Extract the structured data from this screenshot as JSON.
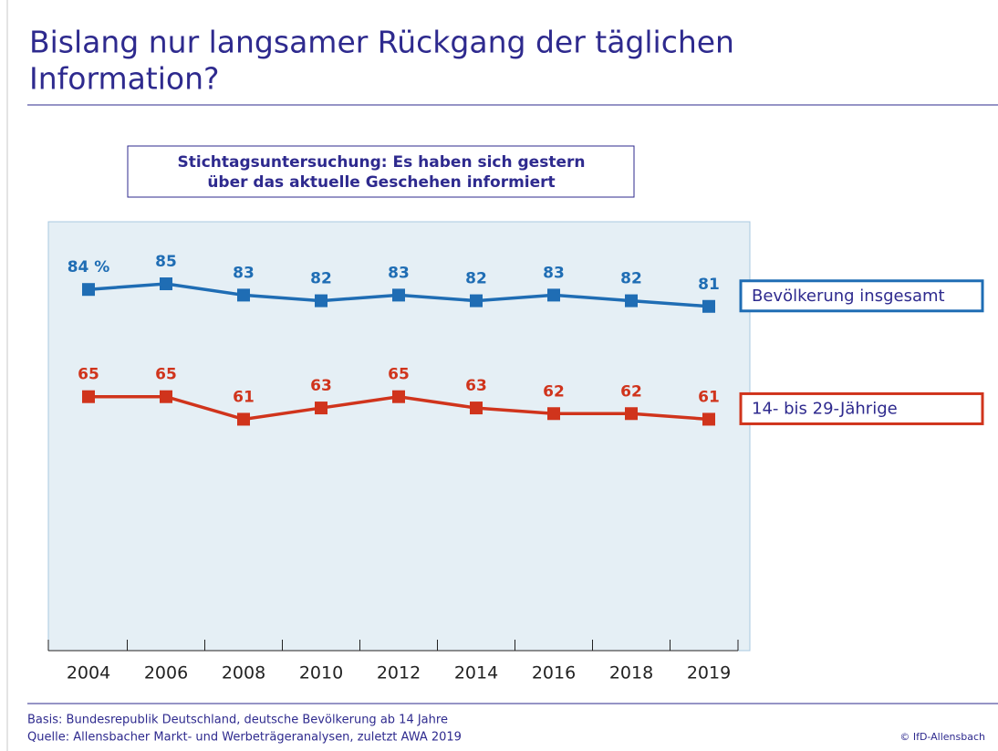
{
  "title": [
    "Bislang nur langsamer Rückgang der täglichen",
    "Information?"
  ],
  "chart_data": {
    "type": "line",
    "subtitle": [
      "Stichtagsuntersuchung: Es haben sich gestern",
      "über das aktuelle Geschehen informiert"
    ],
    "categories": [
      "2004",
      "2006",
      "2008",
      "2010",
      "2012",
      "2014",
      "2016",
      "2018",
      "2019"
    ],
    "series": [
      {
        "name": "Bevölkerung insgesamt",
        "color": "#1f6db4",
        "values": [
          84,
          85,
          83,
          82,
          83,
          82,
          83,
          82,
          81
        ],
        "value_labels": [
          "84 %",
          "85",
          "83",
          "82",
          "83",
          "82",
          "83",
          "82",
          "81"
        ]
      },
      {
        "name": "14- bis 29-Jährige",
        "color": "#d0341c",
        "values": [
          65,
          65,
          61,
          63,
          65,
          63,
          62,
          62,
          61
        ]
      }
    ],
    "ylim": [
      20,
      96
    ]
  },
  "footer": {
    "basis": "Basis:  Bundesrepublik Deutschland, deutsche Bevölkerung ab 14 Jahre",
    "source": "Quelle: Allensbacher Markt- und Werbeträgeranalysen, zuletzt AWA 2019",
    "copyright": "© IfD-Allensbach"
  }
}
